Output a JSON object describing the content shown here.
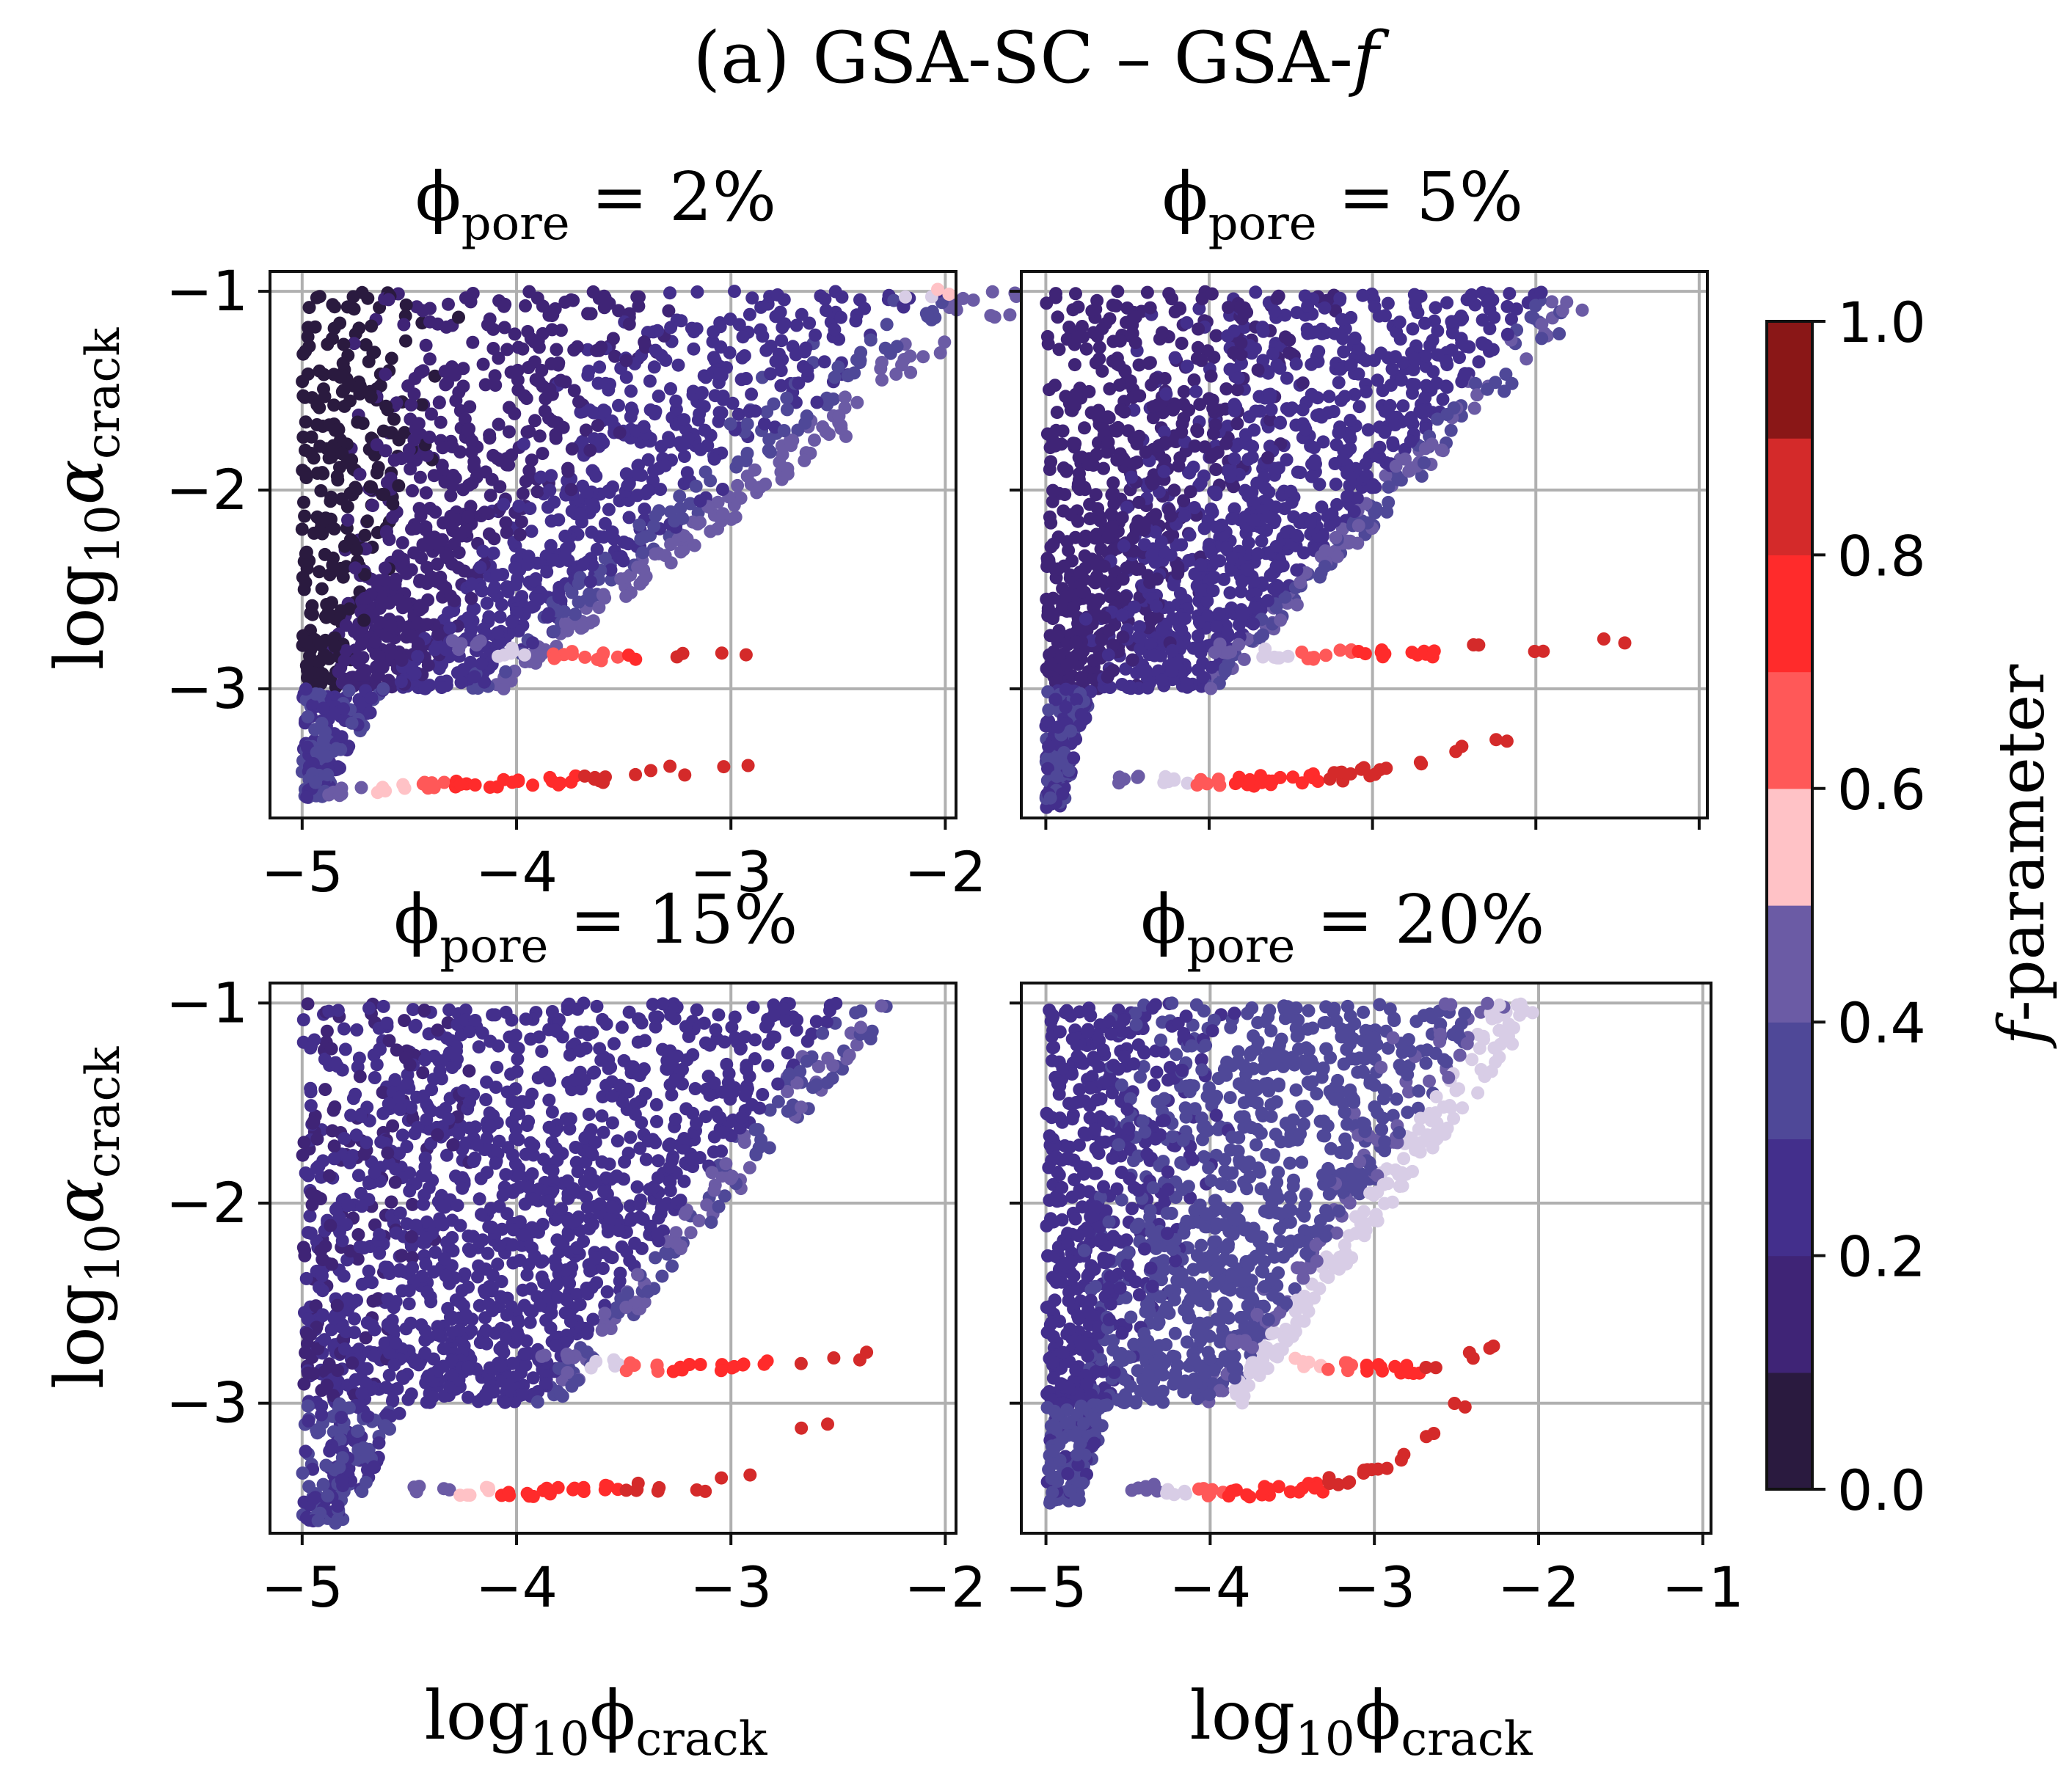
{
  "figure": {
    "title": {
      "prefix": "(a) GSA-SC – GSA-",
      "f_symbol": "f"
    }
  },
  "colorbar": {
    "label_f": "f",
    "label_rest": "-parameter",
    "ticks": [
      "0.0",
      "0.2",
      "0.4",
      "0.6",
      "0.8",
      "1.0"
    ],
    "tick_values": [
      0,
      0.2,
      0.4,
      0.6,
      0.8,
      1.0
    ],
    "levels": 10,
    "colors": [
      "#2a1a3f",
      "#3f2476",
      "#432f8c",
      "#4f4898",
      "#6b5ba5",
      "#d8cde6",
      "#ffc2c6",
      "#ff5858",
      "#ff2b2b",
      "#d42a2a",
      "#8a1717"
    ]
  },
  "axis_text": {
    "ylabel_log": "log",
    "ylabel_sub": "10",
    "ylabel_greek": "α",
    "ylabel_greek_sub": "crack",
    "xlabel_log": "log",
    "xlabel_sub": "10",
    "xlabel_greek": "ϕ",
    "xlabel_greek_sub": "crack",
    "title_phi": "ϕ",
    "title_sub": "pore",
    "title_eq": " = "
  },
  "chart_data": [
    {
      "type": "scatter",
      "panel": "top-left",
      "title_value": "2%",
      "xlim": [
        -5.15,
        -1.95
      ],
      "ylim": [
        -3.65,
        -0.9
      ],
      "xticks": [
        -5,
        -4,
        -3,
        -2
      ],
      "xtick_labels": [
        "−5",
        "−4",
        "−3",
        "−2"
      ],
      "yticks": [
        -1,
        -2,
        -3
      ],
      "ytick_labels": [
        "−1",
        "−2",
        "−3"
      ],
      "show_xtick_labels": true,
      "show_ytick_labels": true,
      "upper_region": {
        "x_min": -5.0,
        "x_right_at_top": -1.55,
        "x_right_at_bottom": -4.05,
        "y_top": -1.0,
        "y_bottom": -3.0,
        "f_left": 0.05,
        "f_right": 0.35
      },
      "lower_region": {
        "x_min": -5.0,
        "x_right_at_top": -4.6,
        "x_right_at_bottom": -4.9,
        "y_top": -3.0,
        "y_bottom": -3.55,
        "f": 0.3
      },
      "tail_upper": {
        "x": [
          -4.25,
          -4.0,
          -3.8,
          -3.6,
          -3.4,
          -3.2,
          -3.0
        ],
        "y": [
          -2.78,
          -2.82,
          -2.83,
          -2.84,
          -2.84,
          -2.84,
          -2.83
        ],
        "f": [
          0.45,
          0.55,
          0.7,
          0.78,
          0.85,
          0.9,
          0.95
        ]
      },
      "tail_lower": {
        "x": [
          -4.8,
          -4.6,
          -4.4,
          -4.2,
          -4.0,
          -3.8,
          -3.6,
          -3.4,
          -3.2,
          -3.0
        ],
        "y": [
          -3.52,
          -3.5,
          -3.48,
          -3.48,
          -3.47,
          -3.46,
          -3.45,
          -3.43,
          -3.41,
          -3.39
        ],
        "f": [
          0.45,
          0.6,
          0.75,
          0.8,
          0.85,
          0.88,
          0.9,
          0.92,
          0.94,
          0.95
        ]
      },
      "edge_highlight": {
        "x": [
          -2.1,
          -1.98
        ],
        "y": [
          -1.02,
          -1.0
        ],
        "f": [
          0.55,
          0.6
        ]
      }
    },
    {
      "type": "scatter",
      "panel": "top-right",
      "title_value": "5%",
      "xlim": [
        -5.15,
        -0.95
      ],
      "ylim": [
        -3.65,
        -0.9
      ],
      "xticks": [
        -5,
        -4,
        -3,
        -2,
        -1
      ],
      "xtick_labels": [
        "−5",
        "−4",
        "−3",
        "−2",
        "−1"
      ],
      "yticks": [
        -1,
        -2,
        -3
      ],
      "ytick_labels": [
        "−1",
        "−2",
        "−3"
      ],
      "show_xtick_labels": false,
      "show_ytick_labels": false,
      "upper_region": {
        "x_min": -5.0,
        "x_right_at_top": -1.6,
        "x_right_at_bottom": -3.95,
        "y_top": -1.0,
        "y_bottom": -3.0,
        "f_left": 0.15,
        "f_right": 0.28
      },
      "lower_region": {
        "x_min": -5.0,
        "x_right_at_top": -4.7,
        "x_right_at_bottom": -4.9,
        "y_top": -3.0,
        "y_bottom": -3.6,
        "f": 0.3
      },
      "tail_upper": {
        "x": [
          -3.9,
          -3.6,
          -3.4,
          -3.2,
          -3.0,
          -2.7,
          -2.3,
          -2.0,
          -1.5
        ],
        "y": [
          -2.8,
          -2.82,
          -2.83,
          -2.82,
          -2.82,
          -2.82,
          -2.8,
          -2.79,
          -2.77
        ],
        "f": [
          0.45,
          0.55,
          0.7,
          0.78,
          0.85,
          0.88,
          0.9,
          0.95,
          0.96
        ]
      },
      "tail_lower": {
        "x": [
          -4.5,
          -4.2,
          -4.0,
          -3.8,
          -3.6,
          -3.4,
          -3.2,
          -3.0,
          -2.7,
          -2.4,
          -2.2
        ],
        "y": [
          -3.46,
          -3.46,
          -3.47,
          -3.47,
          -3.46,
          -3.45,
          -3.44,
          -3.42,
          -3.39,
          -3.31,
          -3.25
        ],
        "f": [
          0.45,
          0.55,
          0.75,
          0.8,
          0.85,
          0.88,
          0.9,
          0.92,
          0.94,
          0.96,
          0.97
        ]
      },
      "edge_highlight": {
        "x": [],
        "y": [],
        "f": []
      }
    },
    {
      "type": "scatter",
      "panel": "bottom-left",
      "title_value": "15%",
      "xlim": [
        -5.15,
        -1.95
      ],
      "ylim": [
        -3.65,
        -0.9
      ],
      "xticks": [
        -5,
        -4,
        -3,
        -2
      ],
      "xtick_labels": [
        "−5",
        "−4",
        "−3",
        "−2"
      ],
      "yticks": [
        -1,
        -2,
        -3
      ],
      "ytick_labels": [
        "−1",
        "−2",
        "−3"
      ],
      "show_xtick_labels": true,
      "show_ytick_labels": true,
      "upper_region": {
        "x_min": -5.0,
        "x_right_at_top": -2.2,
        "x_right_at_bottom": -3.8,
        "y_top": -1.0,
        "y_bottom": -3.0,
        "f_left": 0.2,
        "f_right": 0.28
      },
      "lower_region": {
        "x_min": -5.0,
        "x_right_at_top": -4.5,
        "x_right_at_bottom": -4.8,
        "y_top": -3.0,
        "y_bottom": -3.6,
        "f": 0.3
      },
      "tail_upper": {
        "x": [
          -3.8,
          -3.6,
          -3.4,
          -3.2,
          -3.0,
          -2.8,
          -2.6,
          -2.4
        ],
        "y": [
          -2.76,
          -2.8,
          -2.82,
          -2.82,
          -2.82,
          -2.8,
          -2.79,
          -2.77
        ],
        "f": [
          0.45,
          0.55,
          0.7,
          0.8,
          0.85,
          0.88,
          0.9,
          0.92
        ]
      },
      "tail_lower": {
        "x": [
          -4.4,
          -4.2,
          -4.0,
          -3.8,
          -3.6,
          -3.4,
          -3.2,
          -3.0,
          -2.6
        ],
        "y": [
          -3.44,
          -3.44,
          -3.45,
          -3.44,
          -3.43,
          -3.42,
          -3.42,
          -3.35,
          -3.12
        ],
        "f": [
          0.45,
          0.6,
          0.8,
          0.85,
          0.88,
          0.9,
          0.9,
          0.95,
          0.96
        ]
      },
      "edge_highlight": {
        "x": [],
        "y": [],
        "f": []
      }
    },
    {
      "type": "scatter",
      "panel": "bottom-right",
      "title_value": "20%",
      "xlim": [
        -5.15,
        -0.95
      ],
      "ylim": [
        -3.65,
        -0.9
      ],
      "xticks": [
        -5,
        -4,
        -3,
        -2,
        -1
      ],
      "xtick_labels": [
        "−5",
        "−4",
        "−3",
        "−2",
        "−1"
      ],
      "yticks": [
        -1,
        -2,
        -3
      ],
      "ytick_labels": [
        "−1",
        "−2",
        "−3"
      ],
      "show_xtick_labels": true,
      "show_ytick_labels": false,
      "upper_region": {
        "x_min": -5.0,
        "x_right_at_top": -1.95,
        "x_right_at_bottom": -3.8,
        "y_top": -1.0,
        "y_bottom": -3.0,
        "f_left": 0.25,
        "f_right": 0.42
      },
      "lower_region": {
        "x_min": -5.0,
        "x_right_at_top": -4.6,
        "x_right_at_bottom": -4.8,
        "y_top": -3.0,
        "y_bottom": -3.5,
        "f": 0.32
      },
      "tail_upper": {
        "x": [
          -3.8,
          -3.6,
          -3.4,
          -3.2,
          -3.0,
          -2.8,
          -2.6,
          -2.4,
          -2.3
        ],
        "y": [
          -2.7,
          -2.76,
          -2.8,
          -2.82,
          -2.83,
          -2.83,
          -2.8,
          -2.76,
          -2.72
        ],
        "f": [
          0.45,
          0.55,
          0.65,
          0.78,
          0.85,
          0.88,
          0.9,
          0.92,
          0.94
        ]
      },
      "tail_lower": {
        "x": [
          -4.4,
          -4.2,
          -4.0,
          -3.8,
          -3.6,
          -3.4,
          -3.2,
          -3.0,
          -2.8,
          -2.6,
          -2.5
        ],
        "y": [
          -3.43,
          -3.44,
          -3.45,
          -3.45,
          -3.44,
          -3.42,
          -3.39,
          -3.35,
          -3.27,
          -3.15,
          -3.02
        ],
        "f": [
          0.45,
          0.55,
          0.7,
          0.8,
          0.85,
          0.88,
          0.9,
          0.92,
          0.94,
          0.96,
          0.97
        ]
      },
      "edge_highlight": {
        "x": [],
        "y": [],
        "f": []
      }
    }
  ]
}
